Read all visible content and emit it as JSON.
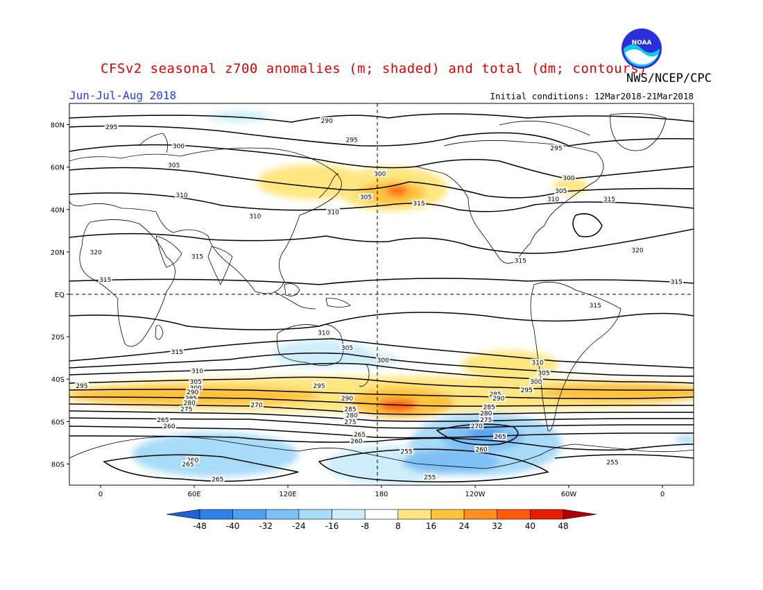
{
  "title": "CFSv2 seasonal z700 anomalies (m; shaded) and total (dm; contours)",
  "agency": "NWS/NCEP/CPC",
  "logo_text": "NOAA",
  "period": "Jun-Jul-Aug 2018",
  "initial_conditions": "Initial conditions: 12Mar2018-21Mar2018",
  "lat_labels": [
    {
      "label": "80N",
      "lat": 80
    },
    {
      "label": "60N",
      "lat": 60
    },
    {
      "label": "40N",
      "lat": 40
    },
    {
      "label": "20N",
      "lat": 20
    },
    {
      "label": "EQ",
      "lat": 0
    },
    {
      "label": "20S",
      "lat": -20
    },
    {
      "label": "40S",
      "lat": -40
    },
    {
      "label": "60S",
      "lat": -60
    },
    {
      "label": "80S",
      "lat": -80
    }
  ],
  "lon_labels": [
    {
      "label": "0",
      "lon": 0
    },
    {
      "label": "60E",
      "lon": 60
    },
    {
      "label": "120E",
      "lon": 120
    },
    {
      "label": "180",
      "lon": 180
    },
    {
      "label": "120W",
      "lon": 240
    },
    {
      "label": "60W",
      "lon": 300
    },
    {
      "label": "0",
      "lon": 360
    }
  ],
  "colorbar": {
    "labels": [
      "-48",
      "-40",
      "-32",
      "-24",
      "-16",
      "-8",
      "8",
      "16",
      "24",
      "32",
      "40",
      "48"
    ],
    "colors": [
      "#1d64d6",
      "#2f82e8",
      "#4fa0f0",
      "#7ebff5",
      "#a8dbf7",
      "#cdeefa",
      "#ffffff",
      "#ffe680",
      "#ffc23c",
      "#ff9020",
      "#ff5a0a",
      "#e81c00",
      "#b00000"
    ]
  },
  "contour_labels": [
    {
      "text": "290",
      "lon": 145,
      "lat": 82
    },
    {
      "text": "295",
      "lon": 7,
      "lat": 79
    },
    {
      "text": "300",
      "lon": 50,
      "lat": 70
    },
    {
      "text": "295",
      "lon": 161,
      "lat": 73
    },
    {
      "text": "295",
      "lon": 292,
      "lat": 69
    },
    {
      "text": "305",
      "lon": 47,
      "lat": 61
    },
    {
      "text": "300",
      "lon": 179,
      "lat": 57
    },
    {
      "text": "300",
      "lon": 300,
      "lat": 55
    },
    {
      "text": "305",
      "lon": 170,
      "lat": 46
    },
    {
      "text": "305",
      "lon": 295,
      "lat": 49
    },
    {
      "text": "310",
      "lon": 52,
      "lat": 47
    },
    {
      "text": "315",
      "lon": 204,
      "lat": 43
    },
    {
      "text": "310",
      "lon": 290,
      "lat": 45
    },
    {
      "text": "315",
      "lon": 326,
      "lat": 45
    },
    {
      "text": "310",
      "lon": 99,
      "lat": 37
    },
    {
      "text": "310",
      "lon": 149,
      "lat": 39
    },
    {
      "text": "320",
      "lon": -3,
      "lat": 20
    },
    {
      "text": "315",
      "lon": 62,
      "lat": 18
    },
    {
      "text": "315",
      "lon": 269,
      "lat": 16
    },
    {
      "text": "320",
      "lon": 344,
      "lat": 21
    },
    {
      "text": "315",
      "lon": 3,
      "lat": 7
    },
    {
      "text": "315",
      "lon": 369,
      "lat": 6
    },
    {
      "text": "315",
      "lon": 317,
      "lat": -5
    },
    {
      "text": "310",
      "lon": 143,
      "lat": -18
    },
    {
      "text": "305",
      "lon": 158,
      "lat": -25
    },
    {
      "text": "300",
      "lon": 181,
      "lat": -31
    },
    {
      "text": "315",
      "lon": 49,
      "lat": -27
    },
    {
      "text": "310",
      "lon": 280,
      "lat": -32
    },
    {
      "text": "305",
      "lon": 284,
      "lat": -37
    },
    {
      "text": "300",
      "lon": 279,
      "lat": -41
    },
    {
      "text": "295",
      "lon": 273,
      "lat": -45
    },
    {
      "text": "310",
      "lon": 62,
      "lat": -36
    },
    {
      "text": "305",
      "lon": 61,
      "lat": -41
    },
    {
      "text": "295",
      "lon": 140,
      "lat": -43
    },
    {
      "text": "290",
      "lon": 158,
      "lat": -49
    },
    {
      "text": "300",
      "lon": 61,
      "lat": -44
    },
    {
      "text": "295",
      "lon": -12,
      "lat": -43
    },
    {
      "text": "290",
      "lon": 59,
      "lat": -46
    },
    {
      "text": "285",
      "lon": 58,
      "lat": -49
    },
    {
      "text": "280",
      "lon": 57,
      "lat": -51
    },
    {
      "text": "275",
      "lon": 55,
      "lat": -54
    },
    {
      "text": "270",
      "lon": 100,
      "lat": -52
    },
    {
      "text": "285",
      "lon": 253,
      "lat": -47
    },
    {
      "text": "285",
      "lon": 160,
      "lat": -54
    },
    {
      "text": "280",
      "lon": 161,
      "lat": -57
    },
    {
      "text": "275",
      "lon": 160,
      "lat": -60
    },
    {
      "text": "290",
      "lon": 255,
      "lat": -49
    },
    {
      "text": "285",
      "lon": 249,
      "lat": -53
    },
    {
      "text": "280",
      "lon": 247,
      "lat": -56
    },
    {
      "text": "275",
      "lon": 247,
      "lat": -59
    },
    {
      "text": "265",
      "lon": 40,
      "lat": -59
    },
    {
      "text": "260",
      "lon": 44,
      "lat": -62
    },
    {
      "text": "265",
      "lon": 166,
      "lat": -66
    },
    {
      "text": "260",
      "lon": 164,
      "lat": -69
    },
    {
      "text": "270",
      "lon": 241,
      "lat": -62
    },
    {
      "text": "265",
      "lon": 256,
      "lat": -67
    },
    {
      "text": "260",
      "lon": 244,
      "lat": -73
    },
    {
      "text": "255",
      "lon": 196,
      "lat": -74
    },
    {
      "text": "260",
      "lon": 59,
      "lat": -78
    },
    {
      "text": "265",
      "lon": 56,
      "lat": -80
    },
    {
      "text": "265",
      "lon": 75,
      "lat": -87
    },
    {
      "text": "255",
      "lon": 211,
      "lat": -86
    },
    {
      "text": "255",
      "lon": 328,
      "lat": -79
    }
  ]
}
